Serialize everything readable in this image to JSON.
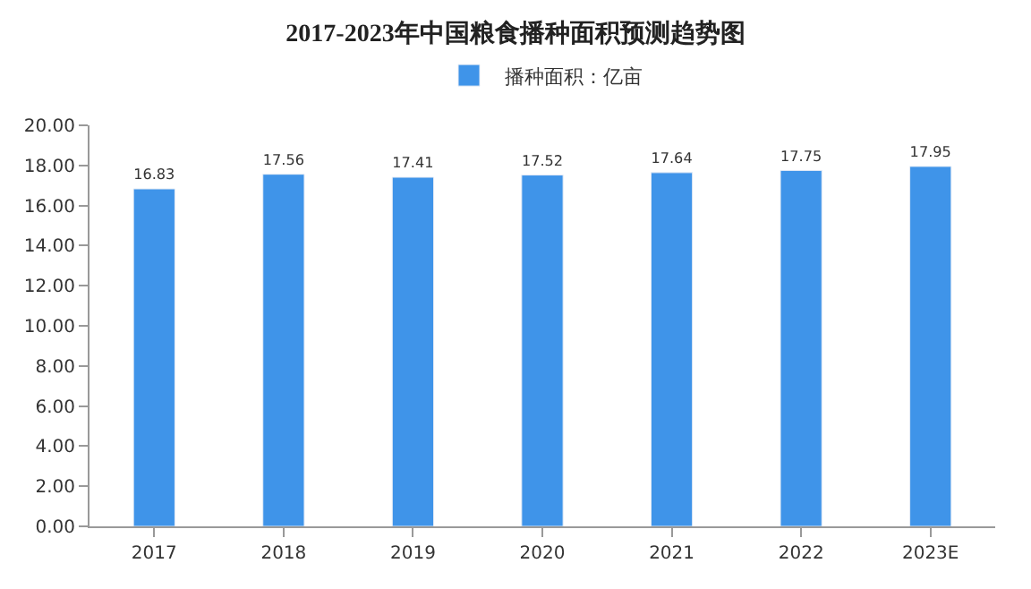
{
  "chart_data": {
    "type": "bar",
    "title": "2017-2023年中国粮食播种面积预测趋势图",
    "categories": [
      "2017",
      "2018",
      "2019",
      "2020",
      "2021",
      "2022",
      "2023E"
    ],
    "series": [
      {
        "name": "播种面积：亿亩",
        "color": "#3f94e9",
        "values": [
          16.83,
          17.56,
          17.41,
          17.52,
          17.64,
          17.75,
          17.95
        ]
      }
    ],
    "ylim": [
      0,
      20
    ],
    "yticks": [
      {
        "value": 0,
        "label": "0.00"
      },
      {
        "value": 2,
        "label": "2.00"
      },
      {
        "value": 4,
        "label": "4.00"
      },
      {
        "value": 6,
        "label": "6.00"
      },
      {
        "value": 8,
        "label": "8.00"
      },
      {
        "value": 10,
        "label": "10.00"
      },
      {
        "value": 12,
        "label": "12.00"
      },
      {
        "value": 14,
        "label": "14.00"
      },
      {
        "value": 16,
        "label": "16.00"
      },
      {
        "value": 18,
        "label": "18.00"
      },
      {
        "value": 20,
        "label": "20.00"
      }
    ],
    "data_labels": true,
    "legend": "top"
  }
}
